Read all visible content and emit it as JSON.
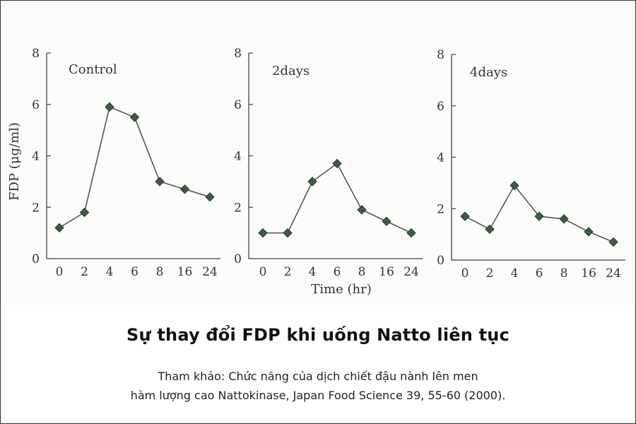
{
  "chart_data": [
    {
      "type": "line",
      "title": "Control",
      "categories": [
        "0",
        "2",
        "4",
        "6",
        "8",
        "16",
        "24"
      ],
      "values": [
        1.2,
        1.8,
        5.9,
        5.5,
        3.0,
        2.7,
        2.4
      ],
      "ylabel": "FDP (μg/ml)",
      "xlabel": "",
      "ylim": [
        0,
        8
      ],
      "yticks": [
        "0",
        "2",
        "4",
        "6",
        "8"
      ],
      "grid": false
    },
    {
      "type": "line",
      "title": "2days",
      "categories": [
        "0",
        "2",
        "4",
        "6",
        "8",
        "16",
        "24"
      ],
      "values": [
        1.0,
        1.0,
        3.0,
        3.7,
        1.9,
        1.45,
        1.0
      ],
      "ylabel": "",
      "xlabel": "Time (hr)",
      "ylim": [
        0,
        8
      ],
      "yticks": [
        "0",
        "2",
        "4",
        "6",
        "8"
      ],
      "grid": false
    },
    {
      "type": "line",
      "title": "4days",
      "categories": [
        "0",
        "2",
        "4",
        "6",
        "8",
        "16",
        "24"
      ],
      "values": [
        1.7,
        1.2,
        2.9,
        1.7,
        1.6,
        1.1,
        0.7
      ],
      "ylabel": "",
      "xlabel": "",
      "ylim": [
        0,
        8
      ],
      "yticks": [
        "0",
        "2",
        "4",
        "6",
        "8"
      ],
      "grid": false
    }
  ],
  "caption": {
    "title": "Sự thay đổi FDP khi uống Natto liên tục",
    "reference_line1": "Tham khảo: Chức năng của dịch chiết đậu nành lên men",
    "reference_line2": "hàm lượng cao Nattokinase, Japan Food Science 39, 55-60 (2000)."
  },
  "colors": {
    "line": "#555555",
    "marker_fill": "#3f5a4a",
    "marker_stroke": "#2a3a30",
    "axis": "#444444"
  }
}
